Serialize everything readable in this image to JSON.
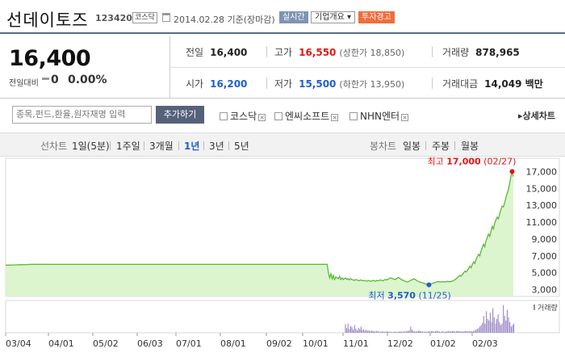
{
  "header": {
    "name": "선데이토즈",
    "code": "123420",
    "market_badge": "코스닥",
    "date": "2014.02.28 기준(장마감)",
    "btn_live": "실시간",
    "btn_overview": "기업개요 ▾",
    "btn_warning": "투자경고"
  },
  "price": {
    "current": "16,400",
    "change_label": "전일대비",
    "change_value": "0",
    "change_pct": "0.00%"
  },
  "stats": {
    "prev_label": "전일",
    "prev": "16,400",
    "high_label": "고가",
    "high": "16,550",
    "high_sub": "(상한가 18,850)",
    "volume_label": "거래량",
    "volume": "878,965",
    "open_label": "시가",
    "open": "16,200",
    "low_label": "저가",
    "low": "15,500",
    "low_sub": "(하한가 13,950)",
    "amount_label": "거래대금",
    "amount": "14,049 백만"
  },
  "compare": {
    "placeholder": "종목,펀드,환율,원자재명 입력",
    "add_button": "추가하기",
    "items": [
      "코스닥",
      "엔씨소프트",
      "NHN엔터"
    ],
    "detail_link": "▸상세차트"
  },
  "tabs": {
    "line_label": "선차트",
    "periods": [
      "1일(5분)",
      "1주일",
      "3개월",
      "1년",
      "3년",
      "5년"
    ],
    "active_period": "1년",
    "candle_label": "봉차트",
    "candles": [
      "일봉",
      "주봉",
      "월봉"
    ]
  },
  "chart_data": {
    "type": "area",
    "y_ticks": [
      "17,000",
      "15,000",
      "13,000",
      "11,000",
      "9,000",
      "7,000",
      "5,000",
      "3,000"
    ],
    "x_ticks": [
      "03/04",
      "04/01",
      "05/02",
      "06/03",
      "07/01",
      "08/01",
      "09/02",
      "10/01",
      "11/01",
      "12/02",
      "01/02",
      "02/03"
    ],
    "ylim": [
      2200,
      17800
    ],
    "max_label": "최고",
    "max_value": "17,000",
    "max_date": "(02/27)",
    "min_label": "최저",
    "min_value": "3,570",
    "min_date": "(11/25)",
    "volume_label": "거래량",
    "series": [
      {
        "values": [
          5900,
          5900,
          5900,
          5910,
          5910,
          5920,
          5920,
          5930,
          5930,
          5940,
          5950,
          5950,
          5960,
          5960,
          5960,
          5970,
          5970,
          5980,
          5980,
          5990,
          6000,
          6000,
          6000,
          6000,
          6000,
          6000,
          6000,
          6000,
          6000,
          6000,
          6000,
          6000,
          6000,
          6000,
          6000,
          6000,
          6000,
          6000,
          6000,
          6000,
          6000,
          6000,
          6000,
          6000,
          6000,
          6000,
          6000,
          6000,
          6000,
          6000,
          6000,
          6000,
          6000,
          6000,
          6000,
          6000,
          6000,
          6000,
          6000,
          6000,
          6000,
          6000,
          6000,
          6000,
          6000,
          6000,
          6000,
          6000,
          6000,
          6000,
          6000,
          6000,
          6000,
          6000,
          6000,
          6000,
          6000,
          6000,
          6000,
          6000,
          6000,
          6000,
          6000,
          6000,
          6000,
          6000,
          6000,
          6000,
          6000,
          6000,
          6000,
          6000,
          6000,
          6000,
          6000,
          6000,
          6000,
          6000,
          6000,
          6000,
          6000,
          6000,
          6000,
          6000,
          6000,
          6000,
          6000,
          6000,
          6000,
          6000,
          6000,
          6000,
          6000,
          6000,
          6000,
          6000,
          6000,
          6000,
          6000,
          6000,
          6000,
          6000,
          6000,
          6000,
          6000,
          6000,
          6000,
          6000,
          6000,
          6000,
          6000,
          6000,
          6000,
          6000,
          6000,
          6000,
          6000,
          6000,
          6000,
          6000,
          6000,
          6000,
          6000,
          6000,
          6000,
          6000,
          6000,
          6000,
          6000,
          6000,
          6000,
          6000,
          6000,
          6000,
          6000,
          6000,
          6000,
          6000,
          6000,
          6000,
          6000,
          6000,
          6000,
          6000,
          6000,
          6000,
          6000,
          6000,
          6000,
          6000,
          6000,
          6000,
          6000,
          6000,
          6000,
          6000,
          6000,
          6000,
          6000,
          6000,
          6000,
          6000,
          6000,
          6000,
          6000,
          6000,
          6000,
          6000,
          6000,
          6000,
          6000,
          6000,
          6000,
          6000,
          6000,
          6000,
          6000,
          6000,
          6000,
          6000,
          6000,
          6000,
          6000,
          6000,
          6000,
          6000,
          6000,
          6000,
          6000,
          6000,
          6000,
          6000,
          6000,
          6000,
          6000,
          6000,
          6000,
          6000,
          6000,
          6000,
          6000,
          6000,
          6000,
          6000,
          6000,
          6000,
          6000,
          6000,
          6000,
          6000,
          6000,
          6000,
          6000,
          6000,
          6000,
          6000,
          6000,
          6000,
          6000,
          6000,
          6000,
          6000,
          6000,
          6000,
          6000,
          6000,
          6000,
          6000,
          6000,
          6000,
          6000,
          6000,
          6000,
          6000,
          6000,
          6000,
          6000,
          6000,
          6000,
          6000,
          5000,
          4400,
          4900,
          4300,
          4700,
          4200,
          4500,
          4400,
          4300,
          4600,
          4200,
          4400,
          4200,
          4300,
          4400,
          4200,
          4300,
          4150,
          4300,
          4200,
          4150,
          4100,
          4200,
          4150,
          4100,
          4050,
          4150,
          4100,
          4050,
          4100,
          4050,
          4000,
          4100,
          4050,
          4000,
          4050,
          4100,
          4050,
          4000,
          4100,
          4050,
          4100,
          4150,
          4100,
          4050,
          4150,
          4200,
          4150,
          4250,
          4300,
          4400,
          4350,
          4300,
          4250,
          4200,
          4300,
          4450,
          4400,
          4300,
          4200,
          4100,
          4050,
          4000,
          3950,
          3900,
          4000,
          4100,
          4150,
          4200,
          4300,
          4200,
          4100,
          4000,
          3950,
          3900,
          3850,
          3800,
          3750,
          3700,
          3650,
          3600,
          3570,
          3650,
          3700,
          3750,
          3800,
          3850,
          3900,
          3950,
          3950,
          3900,
          3950,
          3900,
          3950,
          3900,
          3950,
          4000,
          3950,
          3950,
          4000,
          4000,
          4100,
          4200,
          4300,
          4450,
          4600,
          4700,
          4600,
          4800,
          5000,
          5200,
          5100,
          5300,
          5500,
          5800,
          5600,
          6000,
          6300,
          6100,
          6600,
          6900,
          7200,
          7000,
          7600,
          8000,
          8400,
          8100,
          8800,
          9200,
          9600,
          9300,
          9900,
          10500,
          10200,
          10900,
          11300,
          11600,
          11400,
          12000,
          12500,
          12900,
          12800,
          13300,
          13900,
          14400,
          14800,
          15600,
          16400,
          17000,
          16400
        ]
      }
    ],
    "volume": [
      0,
      0,
      0,
      0,
      0,
      0,
      0,
      0,
      0,
      0,
      0,
      0,
      0,
      0,
      0,
      0,
      0,
      0,
      0,
      0,
      0,
      0,
      0,
      0,
      0,
      0,
      0,
      0,
      0,
      0,
      0,
      0,
      0,
      0,
      0,
      0,
      0,
      0,
      0,
      0,
      0,
      0,
      0,
      0,
      0,
      0,
      0,
      0,
      0,
      0,
      0,
      0,
      0,
      0,
      0,
      0,
      0,
      0,
      0,
      0,
      0,
      0,
      0,
      0,
      0,
      0,
      0,
      0,
      0,
      0,
      0,
      0,
      0,
      0,
      0,
      0,
      0,
      0,
      0,
      0,
      0,
      0,
      0,
      0,
      0,
      0,
      0,
      0,
      0,
      0,
      0,
      0,
      0,
      0,
      0,
      0,
      0,
      0,
      0,
      0,
      0,
      0,
      0,
      0,
      0,
      0,
      0,
      0,
      0,
      0,
      0,
      0,
      0,
      0,
      0,
      0,
      0,
      0,
      0,
      0,
      0,
      0,
      0,
      0,
      0,
      0,
      0,
      0,
      0,
      0,
      0,
      0,
      0,
      0,
      0,
      0,
      0,
      0,
      0,
      0,
      0,
      0,
      0,
      0,
      0,
      0,
      0,
      0,
      0,
      0,
      0,
      0,
      0,
      0,
      0,
      0,
      0,
      0,
      0,
      0,
      0,
      0,
      0,
      0,
      0,
      0,
      0,
      0,
      0,
      0,
      0,
      0,
      0,
      0,
      0,
      0,
      0,
      0,
      0,
      0,
      0,
      0,
      0,
      0,
      0,
      0,
      0,
      0,
      0,
      0,
      0,
      0,
      0,
      0,
      0,
      0,
      0,
      0,
      0,
      0,
      0,
      0,
      0,
      0,
      0,
      0,
      0,
      0,
      0,
      0,
      0,
      0,
      0,
      0,
      0,
      0,
      0,
      0,
      0,
      0,
      0,
      0,
      0,
      0,
      0,
      0,
      0,
      0,
      0,
      0,
      0,
      0,
      0,
      0,
      0,
      0,
      0,
      0,
      0,
      0,
      0,
      0,
      0,
      0,
      0,
      0,
      0,
      0,
      0,
      0,
      0,
      0,
      0,
      0,
      0,
      0,
      0,
      0,
      0,
      0,
      0.28,
      0.15,
      0.3,
      0.12,
      0.22,
      0.18,
      0.1,
      0.25,
      0.14,
      0.08,
      0.16,
      0.12,
      0.2,
      0.09,
      0.11,
      0.07,
      0.1,
      0.06,
      0.08,
      0.05,
      0.07,
      0.06,
      0.05,
      0.04,
      0.06,
      0.05,
      0.04,
      0.03,
      0.05,
      0.04,
      0.03,
      0.04,
      0.05,
      0.03,
      0.04,
      0.03,
      0.02,
      0.03,
      0.04,
      0.03,
      0.03,
      0.04,
      0.05,
      0.04,
      0.03,
      0.05,
      0.04,
      0.06,
      0.05,
      0.08,
      0.2,
      0.1,
      0.06,
      0.05,
      0.04,
      0.05,
      0.07,
      0.06,
      0.05,
      0.04,
      0.03,
      0.04,
      0.03,
      0.04,
      0.05,
      0.04,
      0.06,
      0.05,
      0.04,
      0.05,
      0.06,
      0.05,
      0.04,
      0.03,
      0.05,
      0.04,
      0.03,
      0.04,
      0.05,
      0.06,
      0.04,
      0.05,
      0.06,
      0.05,
      0.04,
      0.05,
      0.06,
      0.05,
      0.04,
      0.05,
      0.04,
      0.05,
      0.06,
      0.05,
      0.04,
      0.05,
      0.06,
      0.05,
      0.06,
      0.07,
      0.1,
      0.12,
      0.15,
      0.2,
      0.25,
      0.32,
      0.55,
      0.3,
      0.7,
      0.45,
      0.4,
      0.65,
      0.35,
      0.8,
      0.5,
      0.3,
      0.45,
      0.6,
      0.35,
      0.25,
      0.3,
      0.9,
      0.55,
      0.4,
      0.75,
      0.5,
      0.35,
      0.2,
      0.25,
      0.3
    ]
  }
}
